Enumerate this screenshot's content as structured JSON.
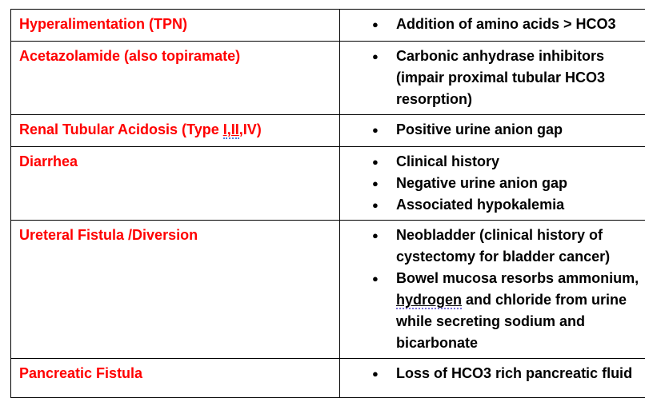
{
  "colors": {
    "cause_text": "#ff0000",
    "desc_text": "#000000",
    "border": "#000000",
    "underline_blue": "#4a7fe0",
    "underline_purple": "#7a6fd8"
  },
  "bullet_glyph": "●",
  "table": {
    "rows": [
      {
        "cause": "Hyperalimentation (TPN)",
        "bullets": [
          "Addition of amino acids > HCO3"
        ]
      },
      {
        "cause": "Acetazolamide (also topiramate)",
        "bullets": [
          "Carbonic anhydrase inhibitors (impair proximal tubular HCO3 resorption)"
        ]
      },
      {
        "cause_prefix": "Renal Tubular Acidosis (Type ",
        "cause_marked": "I,II",
        "cause_suffix": ",IV)",
        "bullets": [
          "Positive urine anion gap"
        ]
      },
      {
        "cause": "Diarrhea",
        "bullets": [
          "Clinical history",
          "Negative urine anion gap",
          "Associated hypokalemia"
        ]
      },
      {
        "cause": "Ureteral Fistula /Diversion",
        "bullets": [
          "Neobladder (clinical history of cystectomy for bladder cancer)"
        ],
        "bullet2_prefix": "Bowel mucosa resorbs ammonium, ",
        "bullet2_marked": "hydrogen",
        "bullet2_suffix": " and chloride from urine while secreting sodium and bicarbonate"
      },
      {
        "cause": "Pancreatic Fistula",
        "bullets": [
          "Loss of HCO3 rich pancreatic fluid"
        ]
      }
    ]
  }
}
